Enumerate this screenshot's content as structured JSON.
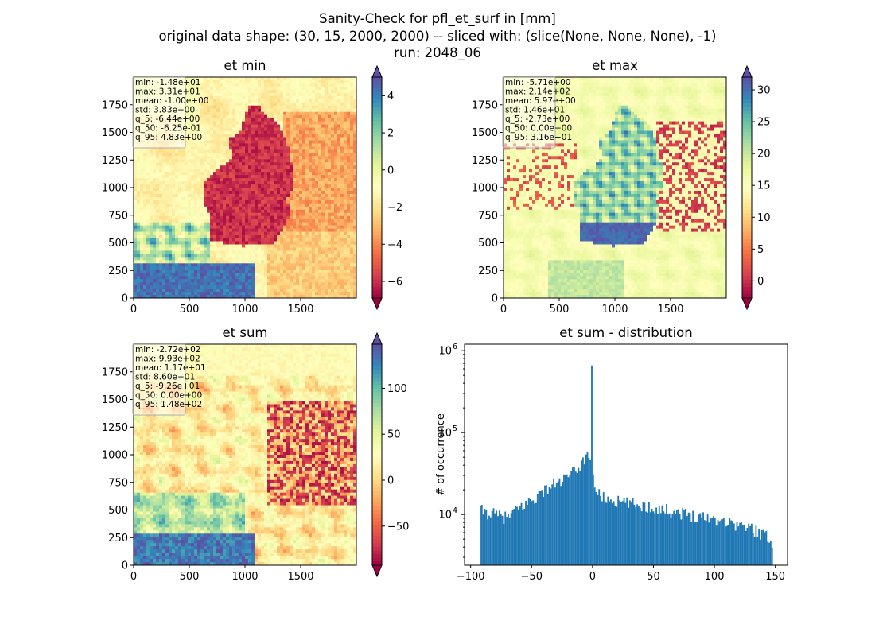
{
  "figure": {
    "title_lines": [
      "Sanity-Check for pfl_et_surf in [mm]",
      "original data shape: (30, 15, 2000, 2000) -- sliced with: (slice(None, None, None), -1)",
      "run: 2048_06"
    ]
  },
  "colors": {
    "colormap": "Spectral",
    "spectral_stops": [
      "#9e0142",
      "#d53e4f",
      "#f46d43",
      "#fdae61",
      "#fee08b",
      "#ffffbf",
      "#e6f598",
      "#abdda4",
      "#66c2a5",
      "#3288bd",
      "#5e4fa2"
    ],
    "histogram_bar": "#1f77b4"
  },
  "chart_data": [
    {
      "type": "heatmap",
      "title": "et min",
      "x_ticks": [
        "0",
        "500",
        "1000",
        "1500"
      ],
      "y_ticks": [
        "0",
        "250",
        "500",
        "750",
        "1000",
        "1250",
        "1500",
        "1750"
      ],
      "colorbar": {
        "ticks": [
          "−6",
          "−4",
          "−2",
          "0",
          "2",
          "4"
        ],
        "range": [
          -6.9,
          5.0
        ],
        "extend": "both"
      },
      "stats": [
        "min: -1.48e+01",
        "max: 3.31e+01",
        "mean: -1.00e+00",
        "std: 3.83e+00",
        "q_5: -6.44e+00",
        "q_50: -6.25e-01",
        "q_95: 4.83e+00"
      ]
    },
    {
      "type": "heatmap",
      "title": "et max",
      "x_ticks": [
        "0",
        "500",
        "1000",
        "1500"
      ],
      "y_ticks": [
        "0",
        "250",
        "500",
        "750",
        "1000",
        "1250",
        "1500",
        "1750"
      ],
      "colorbar": {
        "ticks": [
          "0",
          "5",
          "10",
          "15",
          "20",
          "25",
          "30"
        ],
        "range": [
          -2.7,
          32.0
        ],
        "extend": "both"
      },
      "stats": [
        "min: -5.71e+00",
        "max: 2.14e+02",
        "mean: 5.97e+00",
        "std: 1.46e+01",
        "q_5: -2.73e+00",
        "q_50: 0.00e+00",
        "q_95: 3.16e+01"
      ]
    },
    {
      "type": "heatmap",
      "title": "et sum",
      "x_ticks": [
        "0",
        "500",
        "1000",
        "1500"
      ],
      "y_ticks": [
        "0",
        "250",
        "500",
        "750",
        "1000",
        "1250",
        "1500",
        "1750"
      ],
      "colorbar": {
        "ticks": [
          "−50",
          "0",
          "50",
          "100"
        ],
        "range": [
          -92.6,
          148.0
        ],
        "extend": "both"
      },
      "stats": [
        "min: -2.72e+02",
        "max: 9.93e+02",
        "mean: 1.17e+01",
        "std: 8.60e+01",
        "q_5: -9.26e+01",
        "q_50: 0.00e+00",
        "q_95: 1.48e+02"
      ]
    },
    {
      "type": "bar",
      "title": "et sum - distribution",
      "ylabel": "# of occurrence",
      "yscale": "log",
      "xlim": [
        -105,
        160
      ],
      "ylim": [
        2400,
        1200000
      ],
      "x_ticks": [
        {
          "value": -100,
          "label": "−100"
        },
        {
          "value": -50,
          "label": "−50"
        },
        {
          "value": 0,
          "label": "0"
        },
        {
          "value": 50,
          "label": "50"
        },
        {
          "value": 100,
          "label": "100"
        },
        {
          "value": 150,
          "label": "150"
        }
      ],
      "y_ticks": [
        {
          "value": 10000,
          "base": "10",
          "exp": "4"
        },
        {
          "value": 100000,
          "base": "10",
          "exp": "5"
        },
        {
          "value": 1000000,
          "base": "10",
          "exp": "6"
        }
      ],
      "profile": [
        [
          -92.5,
          11500
        ],
        [
          -90,
          11000
        ],
        [
          -85,
          10500
        ],
        [
          -80,
          10000
        ],
        [
          -75,
          9500
        ],
        [
          -70,
          9200
        ],
        [
          -65,
          10500
        ],
        [
          -60,
          12000
        ],
        [
          -55,
          13500
        ],
        [
          -50,
          15000
        ],
        [
          -45,
          17000
        ],
        [
          -40,
          19500
        ],
        [
          -35,
          22000
        ],
        [
          -30,
          24000
        ],
        [
          -25,
          26000
        ],
        [
          -20,
          29000
        ],
        [
          -15,
          33000
        ],
        [
          -10,
          40000
        ],
        [
          -6,
          50000
        ],
        [
          -3,
          58000
        ],
        [
          -1.5,
          38000
        ],
        [
          -0.5,
          820000
        ],
        [
          0.5,
          32000
        ],
        [
          1.5,
          24000
        ],
        [
          5,
          17500
        ],
        [
          10,
          16000
        ],
        [
          20,
          14500
        ],
        [
          30,
          13800
        ],
        [
          40,
          13000
        ],
        [
          50,
          12200
        ],
        [
          60,
          11500
        ],
        [
          70,
          10800
        ],
        [
          80,
          10000
        ],
        [
          90,
          9500
        ],
        [
          100,
          9000
        ],
        [
          110,
          8300
        ],
        [
          120,
          7500
        ],
        [
          130,
          6800
        ],
        [
          140,
          5800
        ],
        [
          148,
          4600
        ]
      ]
    }
  ]
}
